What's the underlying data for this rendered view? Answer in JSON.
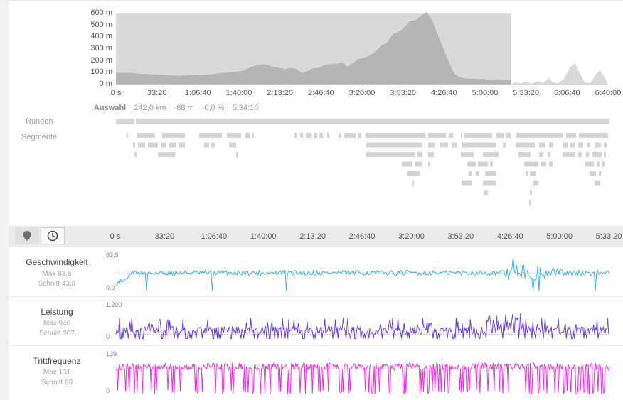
{
  "elevation": {
    "y_ticks": [
      "600 m",
      "500 m",
      "400 m",
      "300 m",
      "200 m",
      "100 m",
      "0 m"
    ],
    "x_ticks": [
      "0 s",
      "33:20",
      "1:06:40",
      "1:40:00",
      "2:13:20",
      "2:46:40",
      "3:20:00",
      "3:53:20",
      "4:26:40",
      "5:00:00",
      "5:33:20",
      "6:06:40",
      "6:40:00"
    ],
    "fill_color": "#b5b5b5",
    "selection_color": "#d9d9d9"
  },
  "rows_labels": {
    "laps": "Runden",
    "segments": "Segmente"
  },
  "selection_summary": {
    "label": "Auswahl",
    "distance": "242,0 km",
    "elevation": "-88 m",
    "grade": "-0,0 %",
    "duration": "5:34:16"
  },
  "toolbar": {
    "map_icon": "map-marker-icon",
    "time_icon": "clock-icon"
  },
  "timeline_x_ticks": [
    "0 s",
    "33:20",
    "1:06:40",
    "1:40:00",
    "2:13:20",
    "2:46:40",
    "3:20:00",
    "3:53:20",
    "4:26:40",
    "5:00:00",
    "5:33:20"
  ],
  "metrics": [
    {
      "key": "speed",
      "title": "Geschwindigkeit",
      "max": "Max 83,5",
      "avg": "Schnitt 43,8",
      "ymax": "83,5",
      "ymin": "0,0",
      "color": "#3aaed8"
    },
    {
      "key": "power",
      "title": "Leistung",
      "max": "Max 946",
      "avg": "Schnitt 207",
      "ymax": "1.200",
      "ymin": "0",
      "color": "#6a3fd1"
    },
    {
      "key": "cadence",
      "title": "Trittfrequenz",
      "max": "Max 131",
      "avg": "Schnitt 89",
      "ymax": "139",
      "ymin": "0",
      "color": "#ee2ee0"
    }
  ]
}
